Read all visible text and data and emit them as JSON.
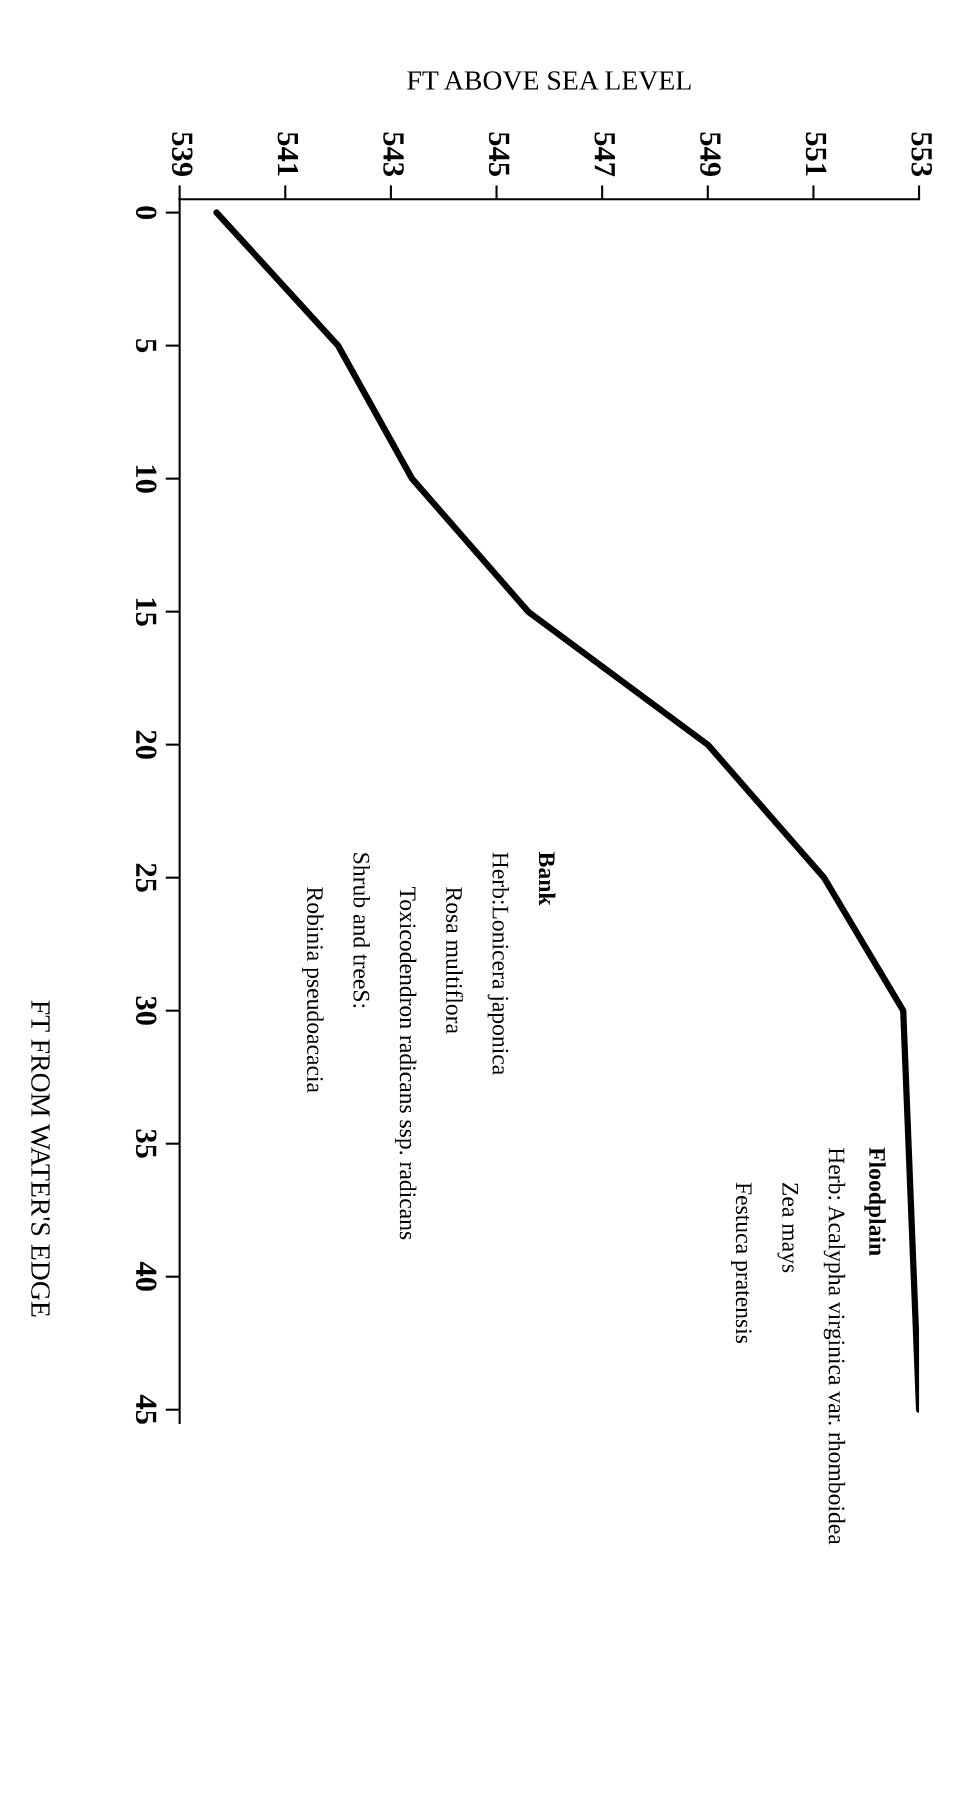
{
  "chart_data": {
    "type": "line",
    "xlabel": "FT ABOVE SEA LEVEL",
    "ylabel": "FT FROM WATER'S EDGE",
    "x": [
      539.7,
      542.0,
      543.4,
      545.6,
      549.0,
      551.2,
      552.7,
      553.0
    ],
    "series": [
      {
        "color": "#000000",
        "values": [
          0,
          5,
          10,
          15,
          20,
          25,
          30,
          45
        ]
      }
    ],
    "xlim": [
      539,
      553
    ],
    "xticks": [
      539,
      541,
      543,
      545,
      547,
      549,
      551,
      553
    ],
    "ylim": [
      45.5,
      -0.5
    ],
    "yticks": [
      0,
      5,
      10,
      15,
      20,
      25,
      30,
      35,
      40,
      45
    ],
    "grid": false,
    "legend": false,
    "marker": "none",
    "line_style": "solid",
    "annotations": [
      "Bank",
      "Herb:Lonicera japonica",
      "Rosa multiflora",
      "Toxicodendron radicans ssp. radicans",
      "Shrub and treeS:",
      "Robinia pseudoacacia",
      "Floodplain",
      "Herb: Acalypha virginica var. rhomboidea",
      "Zea mays",
      "Festuca pratensis"
    ]
  }
}
